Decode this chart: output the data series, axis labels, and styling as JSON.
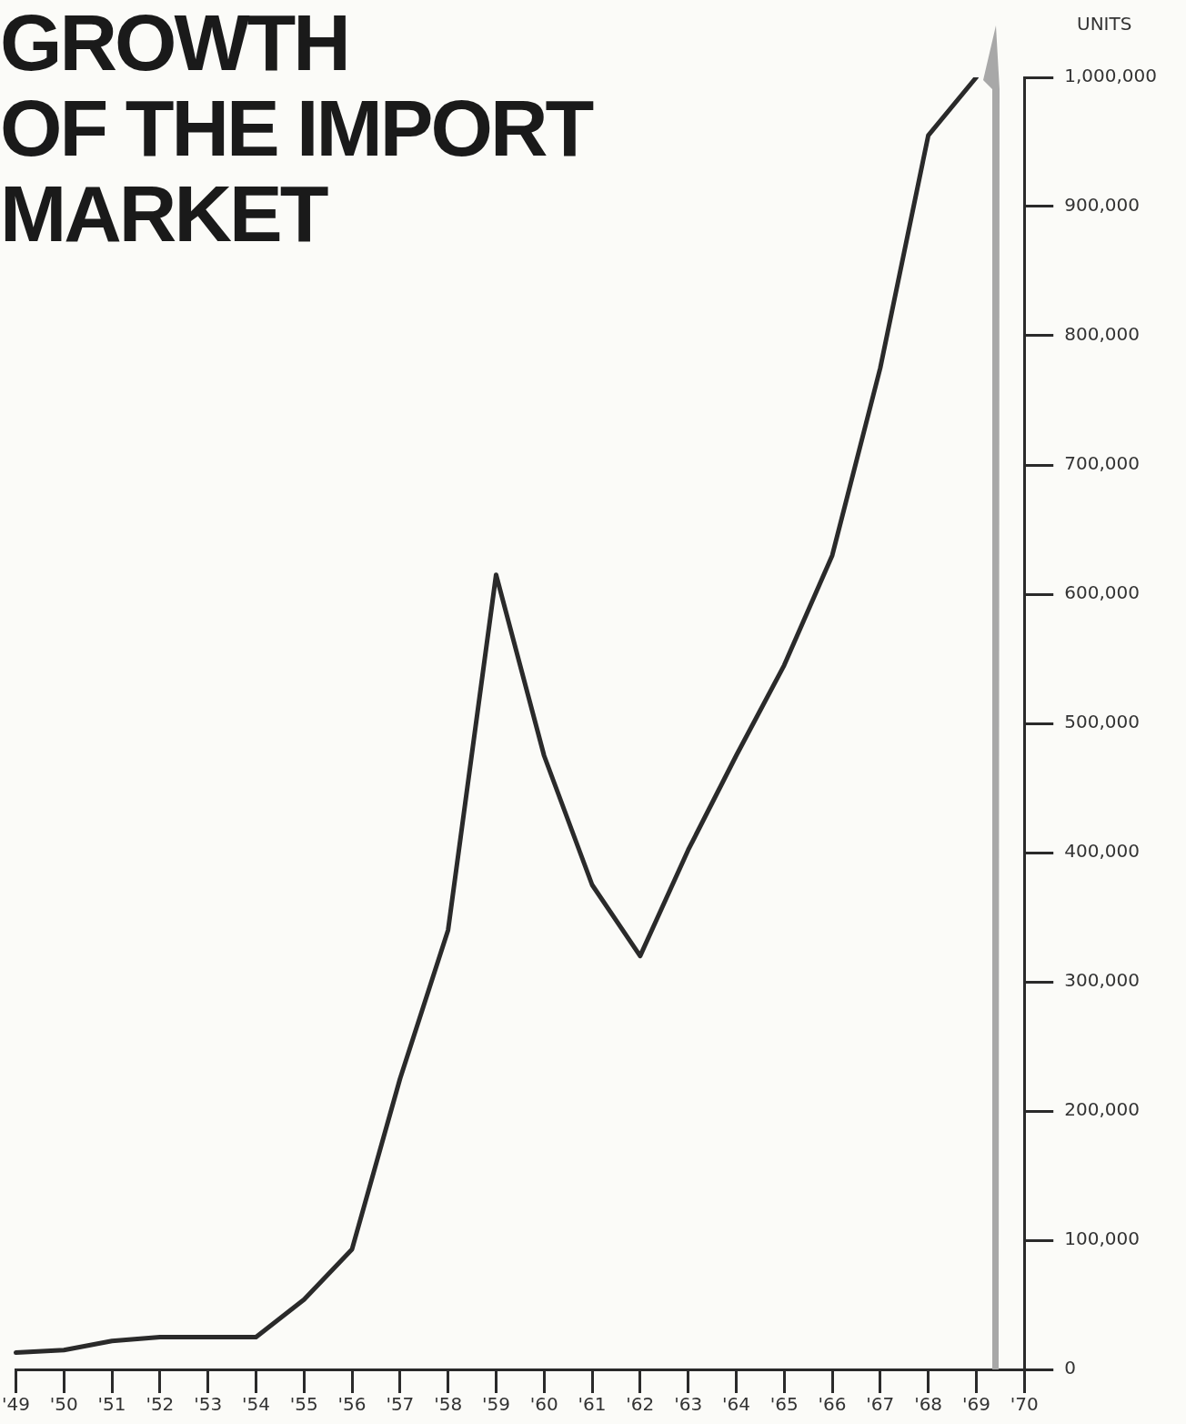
{
  "chart_data": {
    "type": "line",
    "title": "GROWTH OF THE IMPORT MARKET",
    "ylabel": "UNITS",
    "categories": [
      "'49",
      "'50",
      "'51",
      "'52",
      "'53",
      "'54",
      "'55",
      "'56",
      "'57",
      "'58",
      "'59",
      "'60",
      "'61",
      "'62",
      "'63",
      "'64",
      "'65",
      "'66",
      "'67",
      "'68",
      "'69",
      "'70"
    ],
    "series": [
      {
        "color": "#2a2a2a",
        "values": [
          13000,
          15000,
          22000,
          25000,
          25000,
          25000,
          54000,
          93000,
          225000,
          340000,
          615000,
          475000,
          375000,
          320000,
          402000,
          475000,
          545000,
          630000,
          775000,
          955000,
          1000000,
          null
        ]
      }
    ],
    "ylim": [
      0,
      1000000
    ],
    "yticks": [
      0,
      {
        "value": 100000,
        "label": "100,000"
      },
      {
        "value": 200000,
        "label": "200,000"
      },
      {
        "value": 300000,
        "label": "300,000"
      },
      {
        "value": 400000,
        "label": "400,000"
      },
      {
        "value": 500000,
        "label": "500,000"
      },
      {
        "value": 600000,
        "label": "600,000"
      },
      {
        "value": 700000,
        "label": "700,000"
      },
      {
        "value": 800000,
        "label": "800,000"
      },
      {
        "value": 900000,
        "label": "900,000"
      },
      {
        "value": 1000000,
        "label": "1,000,000"
      }
    ],
    "grid": false,
    "legend": false,
    "marker": "none",
    "line_style": "solid"
  }
}
